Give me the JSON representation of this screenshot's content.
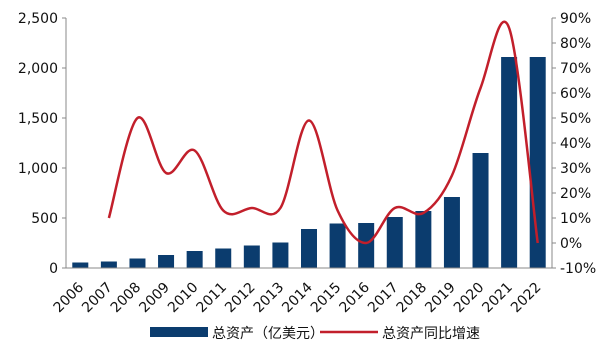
{
  "chart_data": {
    "type": "bar",
    "categories": [
      "2006",
      "2007",
      "2008",
      "2009",
      "2010",
      "2011",
      "2012",
      "2013",
      "2014",
      "2015",
      "2016",
      "2017",
      "2018",
      "2019",
      "2020",
      "2021",
      "2022"
    ],
    "series": [
      {
        "name": "总资产（亿美元）",
        "type": "bar",
        "axis": "left",
        "color": "#0b3c6e",
        "values": [
          55,
          65,
          95,
          130,
          170,
          195,
          225,
          255,
          390,
          445,
          450,
          510,
          570,
          710,
          1150,
          2110,
          2110
        ]
      },
      {
        "name": "总资产同比增速",
        "type": "line",
        "axis": "right",
        "color": "#c21f2b",
        "values": [
          null,
          10,
          50,
          28,
          37,
          13,
          14,
          14,
          49,
          13,
          0,
          14,
          12,
          27,
          62,
          86,
          0
        ]
      }
    ],
    "y_left": {
      "min": 0,
      "max": 2500,
      "ticks": [
        0,
        500,
        1000,
        1500,
        2000,
        2500
      ],
      "tick_labels": [
        "0",
        "500",
        "1,000",
        "1,500",
        "2,000",
        "2,500"
      ]
    },
    "y_right": {
      "min": -10,
      "max": 90,
      "ticks": [
        -10,
        0,
        10,
        20,
        30,
        40,
        50,
        60,
        70,
        80,
        90
      ],
      "tick_labels": [
        "-10%",
        "0%",
        "10%",
        "20%",
        "30%",
        "40%",
        "50%",
        "60%",
        "70%",
        "80%",
        "90%"
      ]
    },
    "grid": false,
    "legend_position": "bottom"
  }
}
